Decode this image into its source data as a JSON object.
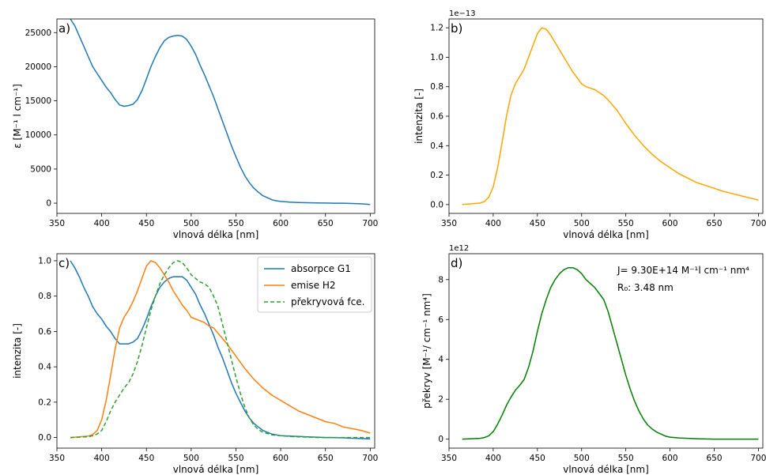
{
  "chart_data": [
    {
      "type": "line",
      "panel_label": "a)",
      "xlabel": "vlnová délka [nm]",
      "ylabel": "ε [M⁻¹ l cm⁻¹]",
      "xlim": [
        350,
        705
      ],
      "ylim": [
        -1500,
        27000
      ],
      "xticks": [
        350,
        400,
        450,
        500,
        550,
        600,
        650,
        700
      ],
      "yticks": [
        0,
        5000,
        10000,
        15000,
        20000,
        25000
      ],
      "offset_text": "",
      "series": [
        {
          "color": "#1f77b4",
          "dashed": false,
          "x": [
            365,
            370,
            375,
            380,
            385,
            390,
            395,
            400,
            405,
            410,
            415,
            420,
            425,
            430,
            435,
            440,
            445,
            450,
            455,
            460,
            465,
            470,
            475,
            480,
            485,
            490,
            495,
            500,
            505,
            510,
            515,
            520,
            525,
            530,
            535,
            540,
            545,
            550,
            555,
            560,
            565,
            570,
            575,
            580,
            585,
            590,
            595,
            600,
            605,
            610,
            615,
            620,
            625,
            630,
            640,
            650,
            660,
            670,
            680,
            690,
            700
          ],
          "y": [
            27000,
            26000,
            24500,
            23000,
            21500,
            20000,
            19000,
            18000,
            17000,
            16200,
            15200,
            14400,
            14200,
            14300,
            14500,
            15200,
            16500,
            18200,
            20000,
            21500,
            22800,
            23800,
            24300,
            24500,
            24600,
            24500,
            24000,
            23000,
            21800,
            20200,
            18800,
            17200,
            15600,
            13800,
            12000,
            10200,
            8400,
            6800,
            5300,
            4000,
            3000,
            2200,
            1600,
            1100,
            800,
            500,
            350,
            250,
            200,
            150,
            120,
            100,
            80,
            60,
            40,
            20,
            0,
            0,
            -50,
            -100,
            -200
          ]
        }
      ]
    },
    {
      "type": "line",
      "panel_label": "b)",
      "xlabel": "vlnová délka [nm]",
      "ylabel": "intenzita [-]",
      "xlim": [
        350,
        705
      ],
      "ylim": [
        -0.06,
        1.26
      ],
      "xticks": [
        350,
        400,
        450,
        500,
        550,
        600,
        650,
        700
      ],
      "yticks": [
        0.0,
        0.2,
        0.4,
        0.6,
        0.8,
        1.0,
        1.2
      ],
      "offset_text": "1e−13",
      "series": [
        {
          "color": "#ffa500",
          "dashed": false,
          "x": [
            365,
            375,
            385,
            390,
            395,
            400,
            405,
            410,
            415,
            420,
            425,
            430,
            435,
            440,
            445,
            450,
            455,
            460,
            465,
            470,
            475,
            480,
            485,
            490,
            495,
            500,
            505,
            510,
            515,
            520,
            525,
            530,
            540,
            550,
            560,
            570,
            580,
            590,
            600,
            610,
            620,
            630,
            640,
            650,
            660,
            670,
            680,
            690,
            700
          ],
          "y": [
            0,
            0.005,
            0.01,
            0.02,
            0.05,
            0.12,
            0.25,
            0.42,
            0.6,
            0.74,
            0.82,
            0.87,
            0.92,
            1.0,
            1.08,
            1.16,
            1.2,
            1.19,
            1.15,
            1.1,
            1.05,
            1.0,
            0.95,
            0.9,
            0.86,
            0.82,
            0.8,
            0.79,
            0.78,
            0.76,
            0.74,
            0.71,
            0.64,
            0.55,
            0.47,
            0.4,
            0.34,
            0.29,
            0.25,
            0.21,
            0.18,
            0.15,
            0.13,
            0.11,
            0.09,
            0.075,
            0.06,
            0.045,
            0.03
          ]
        }
      ]
    },
    {
      "type": "line",
      "panel_label": "c)",
      "xlabel": "vlnová délka [nm]",
      "ylabel": "intenzita [-]",
      "xlim": [
        350,
        705
      ],
      "ylim": [
        -0.06,
        1.04
      ],
      "xticks": [
        350,
        400,
        450,
        500,
        550,
        600,
        650,
        700
      ],
      "yticks": [
        0.0,
        0.2,
        0.4,
        0.6,
        0.8,
        1.0
      ],
      "offset_text": "",
      "legend_position": "upper-right",
      "series": [
        {
          "name": "absorpce G1",
          "color": "#1f77b4",
          "dashed": false,
          "x": [
            365,
            370,
            375,
            380,
            385,
            390,
            395,
            400,
            405,
            410,
            415,
            420,
            425,
            430,
            435,
            440,
            445,
            450,
            455,
            460,
            465,
            470,
            475,
            480,
            485,
            490,
            495,
            500,
            505,
            510,
            515,
            520,
            525,
            530,
            535,
            540,
            545,
            550,
            555,
            560,
            565,
            570,
            575,
            580,
            585,
            590,
            595,
            600,
            610,
            620,
            630,
            640,
            650,
            660,
            670,
            680,
            690,
            700
          ],
          "y": [
            1.0,
            0.96,
            0.91,
            0.85,
            0.8,
            0.74,
            0.7,
            0.67,
            0.63,
            0.6,
            0.56,
            0.53,
            0.53,
            0.53,
            0.54,
            0.56,
            0.61,
            0.67,
            0.74,
            0.8,
            0.85,
            0.88,
            0.9,
            0.91,
            0.91,
            0.91,
            0.89,
            0.85,
            0.81,
            0.75,
            0.7,
            0.64,
            0.58,
            0.51,
            0.45,
            0.38,
            0.31,
            0.25,
            0.2,
            0.15,
            0.11,
            0.08,
            0.06,
            0.04,
            0.03,
            0.02,
            0.015,
            0.01,
            0.008,
            0.006,
            0.004,
            0.002,
            0,
            0,
            -0.002,
            -0.004,
            -0.006,
            -0.008
          ]
        },
        {
          "name": "emise H2",
          "color": "#ff7f0e",
          "dashed": false,
          "x": [
            365,
            375,
            385,
            390,
            395,
            400,
            405,
            410,
            415,
            420,
            425,
            430,
            435,
            440,
            445,
            450,
            455,
            460,
            465,
            470,
            475,
            480,
            485,
            490,
            495,
            500,
            505,
            510,
            515,
            520,
            525,
            530,
            540,
            550,
            560,
            570,
            580,
            590,
            600,
            610,
            620,
            630,
            640,
            650,
            660,
            670,
            680,
            690,
            700
          ],
          "y": [
            0,
            0.004,
            0.008,
            0.017,
            0.04,
            0.1,
            0.21,
            0.35,
            0.5,
            0.62,
            0.68,
            0.72,
            0.77,
            0.83,
            0.9,
            0.97,
            1.0,
            0.99,
            0.96,
            0.92,
            0.88,
            0.83,
            0.79,
            0.75,
            0.72,
            0.68,
            0.67,
            0.66,
            0.65,
            0.63,
            0.62,
            0.59,
            0.53,
            0.46,
            0.39,
            0.33,
            0.28,
            0.24,
            0.21,
            0.18,
            0.15,
            0.13,
            0.11,
            0.09,
            0.08,
            0.06,
            0.05,
            0.04,
            0.025
          ]
        },
        {
          "name": "překryvová fce.",
          "color": "#2ca02c",
          "dashed": true,
          "x": [
            365,
            375,
            385,
            390,
            395,
            400,
            405,
            410,
            415,
            420,
            425,
            430,
            435,
            440,
            445,
            450,
            455,
            460,
            465,
            470,
            475,
            480,
            485,
            490,
            495,
            500,
            505,
            510,
            515,
            520,
            525,
            530,
            535,
            540,
            545,
            550,
            555,
            560,
            565,
            570,
            575,
            580,
            590,
            600,
            610,
            620,
            630,
            640,
            650,
            660,
            670,
            680,
            690,
            700
          ],
          "y": [
            0,
            0.002,
            0.005,
            0.01,
            0.02,
            0.04,
            0.09,
            0.15,
            0.2,
            0.24,
            0.28,
            0.31,
            0.36,
            0.43,
            0.52,
            0.62,
            0.72,
            0.8,
            0.87,
            0.92,
            0.96,
            0.99,
            1.0,
            0.99,
            0.96,
            0.92,
            0.9,
            0.88,
            0.87,
            0.85,
            0.8,
            0.74,
            0.64,
            0.54,
            0.44,
            0.34,
            0.25,
            0.17,
            0.11,
            0.07,
            0.045,
            0.03,
            0.015,
            0.01,
            0.006,
            0.004,
            0.002,
            0,
            0,
            0,
            0,
            0,
            0,
            0
          ]
        }
      ]
    },
    {
      "type": "line",
      "panel_label": "d)",
      "xlabel": "vlnová délka [nm]",
      "ylabel": "překryv [M⁻¹/ cm⁻¹ nm⁴]",
      "xlim": [
        350,
        705
      ],
      "ylim": [
        -0.45,
        9.3
      ],
      "xticks": [
        350,
        400,
        450,
        500,
        550,
        600,
        650,
        700
      ],
      "yticks": [
        0,
        2,
        4,
        6,
        8
      ],
      "offset_text": "1e12",
      "annotations": [
        "J= 9.30E+14 M⁻¹l cm⁻¹ nm⁴",
        "R₀: 3.48 nm"
      ],
      "series": [
        {
          "color": "#008000",
          "dashed": false,
          "x": [
            365,
            375,
            385,
            390,
            395,
            400,
            405,
            410,
            415,
            420,
            425,
            430,
            435,
            440,
            445,
            450,
            455,
            460,
            465,
            470,
            475,
            480,
            485,
            490,
            495,
            500,
            505,
            510,
            515,
            520,
            525,
            530,
            535,
            540,
            545,
            550,
            555,
            560,
            565,
            570,
            575,
            580,
            585,
            590,
            595,
            600,
            610,
            620,
            630,
            640,
            650,
            660,
            670,
            680,
            690,
            700
          ],
          "y": [
            0,
            0.02,
            0.04,
            0.08,
            0.17,
            0.38,
            0.75,
            1.2,
            1.7,
            2.1,
            2.45,
            2.7,
            3.0,
            3.6,
            4.4,
            5.4,
            6.3,
            7.0,
            7.6,
            8.0,
            8.3,
            8.5,
            8.6,
            8.6,
            8.5,
            8.3,
            8.0,
            7.8,
            7.6,
            7.3,
            7.0,
            6.4,
            5.6,
            4.8,
            4.0,
            3.2,
            2.5,
            1.9,
            1.4,
            1.0,
            0.7,
            0.5,
            0.35,
            0.25,
            0.15,
            0.1,
            0.06,
            0.04,
            0.02,
            0.01,
            0,
            0,
            0,
            0,
            0,
            0
          ]
        }
      ]
    }
  ]
}
